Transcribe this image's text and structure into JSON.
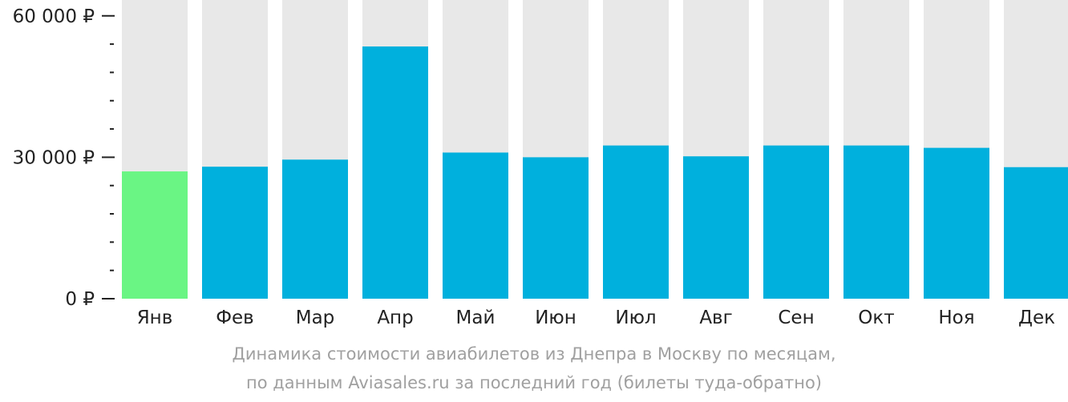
{
  "chart_data": {
    "type": "bar",
    "categories": [
      "Янв",
      "Фев",
      "Мар",
      "Апр",
      "Май",
      "Июн",
      "Июл",
      "Авг",
      "Сен",
      "Окт",
      "Ноя",
      "Дек"
    ],
    "values": [
      27000,
      28000,
      29500,
      53500,
      31000,
      30000,
      32500,
      30200,
      32500,
      32500,
      32000,
      27900
    ],
    "highlight_index": 0,
    "ylim": [
      0,
      62000
    ],
    "yticks": [
      {
        "value": 0,
        "label": "0 ₽"
      },
      {
        "value": 30000,
        "label": "30 000 ₽"
      },
      {
        "value": 60000,
        "label": "60 000 ₽"
      }
    ],
    "minor_tick_step": 6000,
    "colors": {
      "bar": "#00b0dd",
      "highlight": "#6af584",
      "background_column": "#e8e8e8",
      "axis": "#222222"
    }
  },
  "caption": {
    "line1": "Динамика стоимости авиабилетов из Днепра в Москву по месяцам,",
    "line2": "по данным Aviasales.ru за последний год (билеты туда-обратно)"
  }
}
